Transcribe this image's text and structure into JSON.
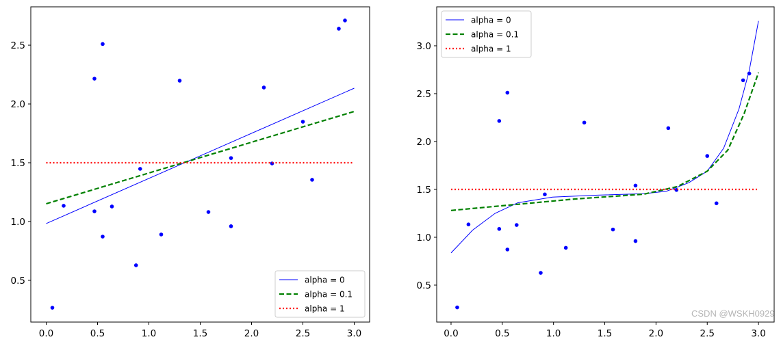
{
  "colors": {
    "points": "#0000ff",
    "alpha_0": "#0000ff",
    "alpha_0_1": "#008000",
    "alpha_1": "#ff0000"
  },
  "watermark": "CSDN @WSKH0929",
  "chart_data": [
    {
      "type": "scatter+line",
      "title": "",
      "xlabel": "",
      "ylabel": "",
      "xlim": [
        -0.15,
        3.15
      ],
      "ylim": [
        0.145,
        2.826
      ],
      "xticks": [
        "0.0",
        "0.5",
        "1.0",
        "1.5",
        "2.0",
        "2.5",
        "3.0"
      ],
      "yticks": [
        "0.5",
        "1.0",
        "1.5",
        "2.0",
        "2.5"
      ],
      "grid": false,
      "legend_position": "lower-right",
      "points": {
        "x": [
          0.06,
          0.17,
          0.47,
          0.47,
          0.55,
          0.55,
          0.64,
          0.875,
          0.915,
          1.12,
          1.3,
          1.58,
          1.8,
          1.8,
          2.12,
          2.2,
          2.5,
          2.59,
          2.85,
          2.91
        ],
        "y": [
          0.267,
          1.134,
          2.215,
          1.087,
          2.51,
          0.872,
          1.128,
          0.628,
          1.448,
          0.89,
          2.198,
          1.081,
          0.96,
          1.54,
          2.14,
          1.494,
          1.849,
          1.355,
          2.64,
          2.71
        ]
      },
      "series": [
        {
          "name": "alpha = 0",
          "style": "solid",
          "x": [
            0,
            3
          ],
          "y": [
            0.983,
            2.134
          ]
        },
        {
          "name": "alpha = 0.1",
          "style": "dashed",
          "x": [
            0,
            3
          ],
          "y": [
            1.151,
            1.936
          ]
        },
        {
          "name": "alpha = 1",
          "style": "dotted",
          "x": [
            0,
            3
          ],
          "y": [
            1.5,
            1.5
          ]
        }
      ]
    },
    {
      "type": "scatter+line",
      "title": "",
      "xlabel": "",
      "ylabel": "",
      "xlim": [
        -0.14,
        3.153
      ],
      "ylim": [
        0.114,
        3.407
      ],
      "xticks": [
        "0.0",
        "0.5",
        "1.0",
        "1.5",
        "2.0",
        "2.5",
        "3.0"
      ],
      "yticks": [
        "0.5",
        "1.0",
        "1.5",
        "2.0",
        "2.5",
        "3.0"
      ],
      "grid": false,
      "legend_position": "upper-left",
      "points": {
        "x": [
          0.06,
          0.17,
          0.47,
          0.47,
          0.55,
          0.55,
          0.64,
          0.875,
          0.915,
          1.12,
          1.3,
          1.58,
          1.8,
          1.8,
          2.12,
          2.2,
          2.5,
          2.59,
          2.85,
          2.91
        ],
        "y": [
          0.267,
          1.134,
          2.215,
          1.087,
          2.51,
          0.872,
          1.128,
          0.628,
          1.448,
          0.89,
          2.198,
          1.081,
          0.96,
          1.54,
          2.14,
          1.494,
          1.849,
          1.355,
          2.64,
          2.71
        ]
      },
      "series": [
        {
          "name": "alpha = 0",
          "style": "solid",
          "x": [
            0,
            0.21,
            0.43,
            0.65,
            0.99,
            1.43,
            1.88,
            2.1,
            2.32,
            2.5,
            2.66,
            2.81,
            2.91,
            3.0
          ],
          "y": [
            0.836,
            1.074,
            1.25,
            1.36,
            1.42,
            1.44,
            1.455,
            1.48,
            1.57,
            1.69,
            1.93,
            2.34,
            2.74,
            3.26
          ]
        },
        {
          "name": "alpha = 0.1",
          "style": "dashed",
          "x": [
            0,
            1.21,
            1.88,
            2.21,
            2.5,
            2.7,
            2.86,
            3.0
          ],
          "y": [
            1.28,
            1.4,
            1.45,
            1.53,
            1.69,
            1.91,
            2.29,
            2.72
          ]
        },
        {
          "name": "alpha = 1",
          "style": "dotted",
          "x": [
            0,
            3
          ],
          "y": [
            1.5,
            1.5
          ]
        }
      ]
    }
  ]
}
